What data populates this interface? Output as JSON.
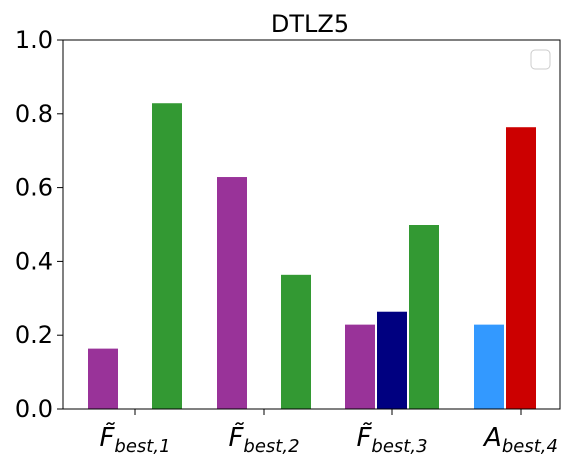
{
  "chart_data": {
    "type": "bar",
    "title": "DTLZ5",
    "xlabel": "",
    "ylabel": "",
    "ylim": [
      0,
      1
    ],
    "yticks": [
      "0.0",
      "0.2",
      "0.4",
      "0.6",
      "0.8",
      "1.0"
    ],
    "legend": {
      "placement": "top-right",
      "entries": []
    },
    "grid": false,
    "categories": [
      {
        "base": "F",
        "tilde": true,
        "sub": "best,1"
      },
      {
        "base": "F",
        "tilde": true,
        "sub": "best,2"
      },
      {
        "base": "F",
        "tilde": true,
        "sub": "best,3"
      },
      {
        "base": "A",
        "tilde": false,
        "sub": "best,4"
      }
    ],
    "bars": [
      {
        "category": 0,
        "slot": 0,
        "value": 0.165,
        "color": "#993399"
      },
      {
        "category": 0,
        "slot": 2,
        "value": 0.83,
        "color": "#339933"
      },
      {
        "category": 1,
        "slot": 0,
        "value": 0.63,
        "color": "#993399"
      },
      {
        "category": 1,
        "slot": 2,
        "value": 0.365,
        "color": "#339933"
      },
      {
        "category": 2,
        "slot": 0,
        "value": 0.23,
        "color": "#993399"
      },
      {
        "category": 2,
        "slot": 1,
        "value": 0.265,
        "color": "#000080"
      },
      {
        "category": 2,
        "slot": 2,
        "value": 0.5,
        "color": "#339933"
      },
      {
        "category": 3,
        "slot": 0,
        "value": 0.23,
        "color": "#3399ff"
      },
      {
        "category": 3,
        "slot": 1,
        "value": 0.765,
        "color": "#cc0000"
      }
    ]
  }
}
